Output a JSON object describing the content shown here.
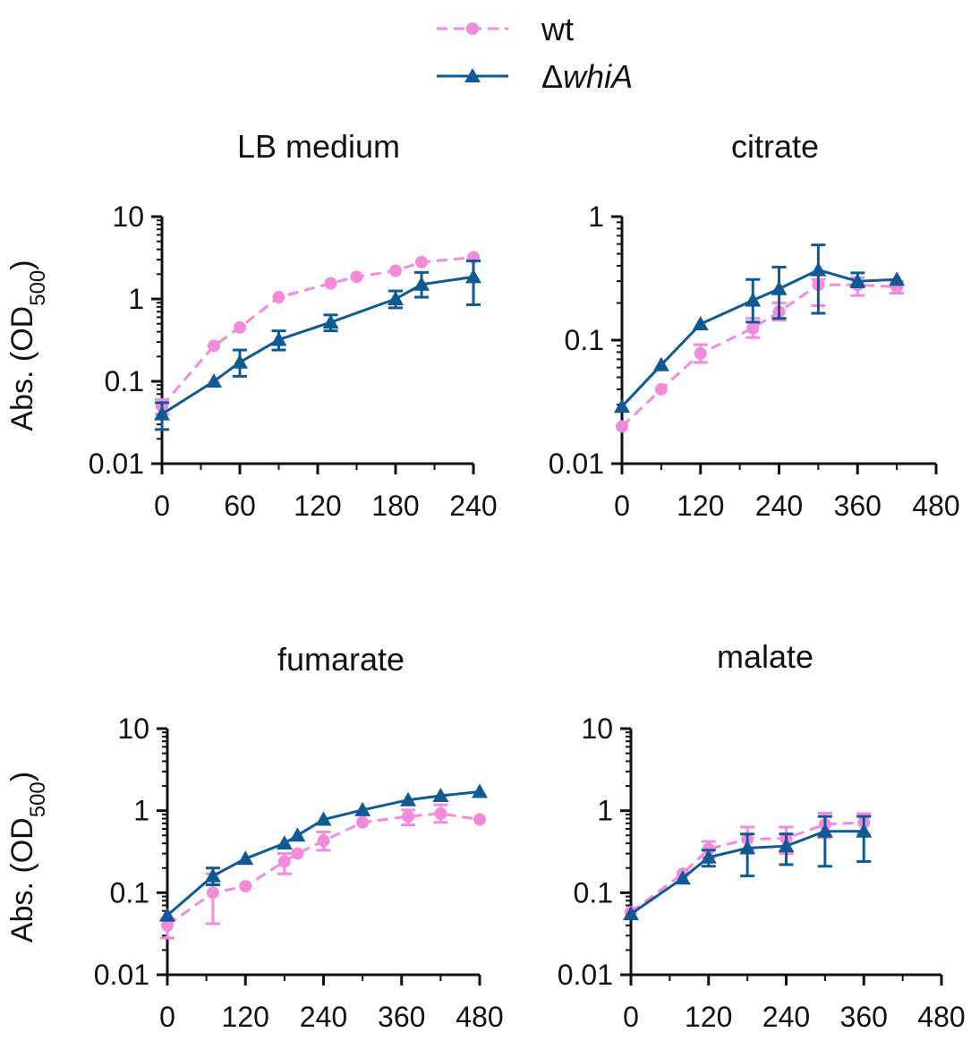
{
  "legend": {
    "items": [
      {
        "label": "wt",
        "marker": "circle",
        "dashed": true,
        "color": "#F48ADB"
      },
      {
        "label": "whiA",
        "prefix": "Δ",
        "italic": true,
        "marker": "triangle",
        "dashed": false,
        "color": "#0D5A94"
      }
    ]
  },
  "ylabel": {
    "main": "Abs. (OD",
    "sub": "500",
    "close": ")"
  },
  "colors": {
    "wt": "#F48ADB",
    "whiA": "#0D5A94",
    "axis": "#111111"
  },
  "chart_data": [
    {
      "type": "line",
      "title": "LB medium",
      "yscale": "log",
      "ylim": [
        0.01,
        10
      ],
      "yticks": [
        "0.01",
        "0.1",
        "1",
        "10"
      ],
      "xlim": [
        0,
        240
      ],
      "xticks": [
        "0",
        "60",
        "120",
        "180",
        "240"
      ],
      "xlabel": "",
      "ylabel": "Abs. (OD500)",
      "series": [
        {
          "name": "wt",
          "x": [
            0,
            40,
            60,
            90,
            130,
            150,
            180,
            200,
            240
          ],
          "y": [
            0.05,
            0.27,
            0.45,
            1.05,
            1.55,
            1.85,
            2.2,
            2.8,
            3.2
          ],
          "err_low": [
            0.04,
            null,
            null,
            null,
            null,
            null,
            null,
            null,
            null
          ],
          "err_high": [
            0.06,
            null,
            null,
            null,
            null,
            null,
            null,
            null,
            null
          ]
        },
        {
          "name": "whiA",
          "x": [
            0,
            40,
            60,
            90,
            130,
            180,
            200,
            240
          ],
          "y": [
            0.04,
            0.1,
            0.17,
            0.32,
            0.52,
            1.0,
            1.5,
            1.85
          ],
          "err_low": [
            0.026,
            null,
            0.115,
            0.24,
            0.41,
            0.78,
            1.05,
            0.85
          ],
          "err_high": [
            0.055,
            null,
            0.24,
            0.41,
            0.64,
            1.25,
            2.1,
            2.9
          ]
        }
      ]
    },
    {
      "type": "line",
      "title": "citrate",
      "yscale": "log",
      "ylim": [
        0.01,
        1
      ],
      "yticks": [
        "0.01",
        "0.1",
        "1"
      ],
      "xlim": [
        0,
        480
      ],
      "xticks": [
        "0",
        "120",
        "240",
        "360",
        "480"
      ],
      "xlabel": "",
      "ylabel": "",
      "series": [
        {
          "name": "wt",
          "x": [
            0,
            60,
            120,
            200,
            240,
            300,
            360,
            420
          ],
          "y": [
            0.02,
            0.04,
            0.078,
            0.125,
            0.17,
            0.28,
            0.28,
            0.27
          ],
          "err_low": [
            null,
            null,
            0.066,
            0.105,
            0.145,
            0.19,
            0.23,
            0.24
          ],
          "err_high": [
            null,
            null,
            0.092,
            0.15,
            0.2,
            0.31,
            0.32,
            0.3
          ]
        },
        {
          "name": "whiA",
          "x": [
            0,
            60,
            120,
            200,
            240,
            300,
            360,
            420
          ],
          "y": [
            0.029,
            0.063,
            0.135,
            0.21,
            0.26,
            0.37,
            0.3,
            0.31
          ],
          "err_low": [
            null,
            null,
            null,
            0.14,
            0.15,
            0.165,
            0.27,
            null
          ],
          "err_high": [
            null,
            null,
            null,
            0.31,
            0.39,
            0.59,
            0.35,
            null
          ]
        }
      ]
    },
    {
      "type": "line",
      "title": "fumarate",
      "yscale": "log",
      "ylim": [
        0.01,
        10
      ],
      "yticks": [
        "0.01",
        "0.1",
        "1",
        "10"
      ],
      "xlim": [
        0,
        480
      ],
      "xticks": [
        "0",
        "120",
        "240",
        "360",
        "480"
      ],
      "xlabel": "",
      "ylabel": "Abs. (OD500)",
      "series": [
        {
          "name": "wt",
          "x": [
            0,
            70,
            120,
            180,
            200,
            240,
            300,
            370,
            420,
            480
          ],
          "y": [
            0.04,
            0.1,
            0.12,
            0.24,
            0.3,
            0.43,
            0.72,
            0.85,
            0.92,
            0.78
          ],
          "err_low": [
            0.028,
            0.042,
            null,
            0.17,
            null,
            0.33,
            null,
            0.67,
            0.72,
            null
          ],
          "err_high": [
            0.048,
            0.17,
            null,
            0.3,
            null,
            0.55,
            null,
            1.02,
            1.18,
            null
          ]
        },
        {
          "name": "whiA",
          "x": [
            0,
            70,
            120,
            180,
            200,
            240,
            300,
            370,
            420,
            480
          ],
          "y": [
            0.053,
            0.16,
            0.26,
            0.4,
            0.5,
            0.78,
            1.02,
            1.35,
            1.52,
            1.7
          ],
          "err_low": [
            null,
            0.125,
            null,
            null,
            null,
            null,
            null,
            null,
            null,
            null
          ],
          "err_high": [
            null,
            0.2,
            null,
            null,
            null,
            null,
            null,
            null,
            null,
            null
          ]
        }
      ]
    },
    {
      "type": "line",
      "title": "malate",
      "yscale": "log",
      "ylim": [
        0.01,
        10
      ],
      "yticks": [
        "0.01",
        "0.1",
        "1",
        "10"
      ],
      "xlim": [
        0,
        480
      ],
      "xticks": [
        "0",
        "120",
        "240",
        "360",
        "480"
      ],
      "xlabel": "",
      "ylabel": "",
      "series": [
        {
          "name": "wt",
          "x": [
            0,
            80,
            120,
            180,
            240,
            300,
            360
          ],
          "y": [
            0.058,
            0.17,
            0.34,
            0.45,
            0.46,
            0.68,
            0.72
          ],
          "err_low": [
            null,
            null,
            0.27,
            0.33,
            0.3,
            0.47,
            0.52
          ],
          "err_high": [
            null,
            null,
            0.42,
            0.63,
            0.63,
            0.93,
            0.92
          ]
        },
        {
          "name": "whiA",
          "x": [
            0,
            80,
            120,
            180,
            240,
            300,
            360
          ],
          "y": [
            0.055,
            0.15,
            0.27,
            0.35,
            0.37,
            0.56,
            0.56
          ],
          "err_low": [
            null,
            null,
            0.21,
            0.16,
            0.22,
            0.21,
            0.24
          ],
          "err_high": [
            null,
            null,
            0.33,
            0.52,
            0.52,
            0.85,
            0.85
          ]
        }
      ]
    }
  ]
}
